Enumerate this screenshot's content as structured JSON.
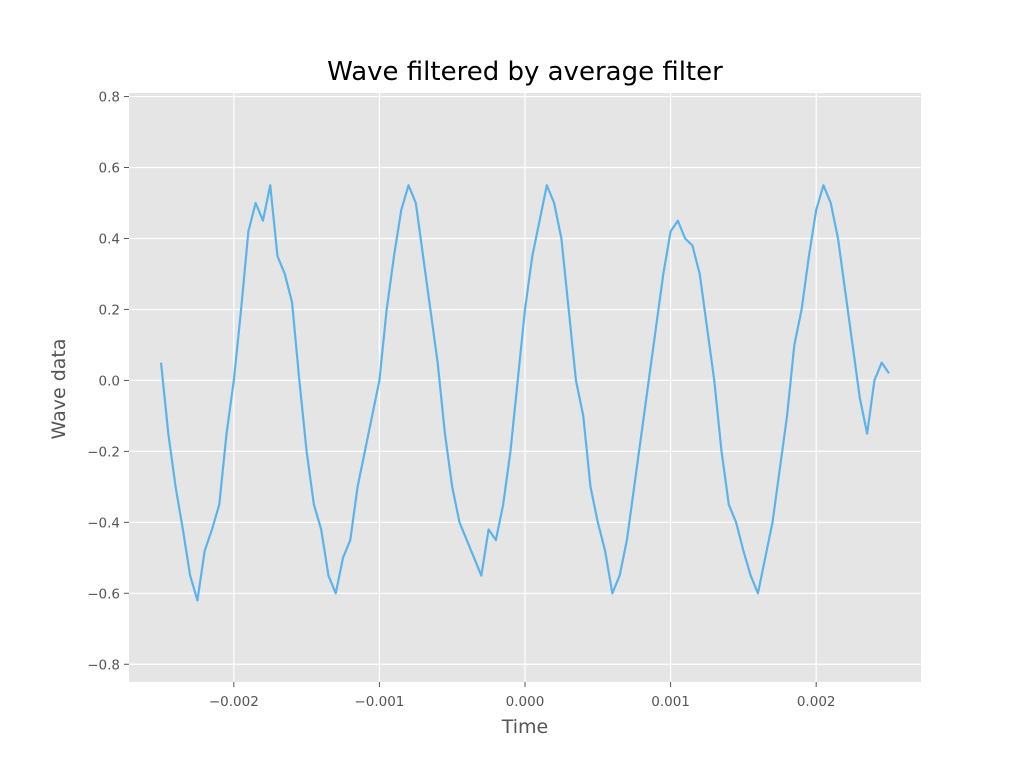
{
  "chart_data": {
    "type": "line",
    "title": "Wave filtered by average filter",
    "xlabel": "Time",
    "ylabel": "Wave data",
    "xlim": [
      -0.00272,
      0.00272
    ],
    "ylim": [
      -0.85,
      0.81
    ],
    "grid": true,
    "legend": false,
    "background_color": "#e5e5e5",
    "line_color": "#5ab4ec",
    "xticks": [
      {
        "value": -0.002,
        "label": "−0.002"
      },
      {
        "value": -0.001,
        "label": "−0.001"
      },
      {
        "value": 0.0,
        "label": "0.000"
      },
      {
        "value": 0.001,
        "label": "0.001"
      },
      {
        "value": 0.002,
        "label": "0.002"
      }
    ],
    "yticks": [
      {
        "value": -0.8,
        "label": "−0.8"
      },
      {
        "value": -0.6,
        "label": "−0.6"
      },
      {
        "value": -0.4,
        "label": "−0.4"
      },
      {
        "value": -0.2,
        "label": "−0.2"
      },
      {
        "value": 0.0,
        "label": "0.0"
      },
      {
        "value": 0.2,
        "label": "0.2"
      },
      {
        "value": 0.4,
        "label": "0.4"
      },
      {
        "value": 0.6,
        "label": "0.6"
      },
      {
        "value": 0.8,
        "label": "0.8"
      }
    ],
    "series": [
      {
        "x": [
          -0.0025,
          -0.00245,
          -0.0024,
          -0.00235,
          -0.0023,
          -0.00225,
          -0.0022,
          -0.00215,
          -0.0021,
          -0.00205,
          -0.002,
          -0.00195,
          -0.0019,
          -0.00185,
          -0.0018,
          -0.00175,
          -0.0017,
          -0.00165,
          -0.0016,
          -0.00155,
          -0.0015,
          -0.00145,
          -0.0014,
          -0.00135,
          -0.0013,
          -0.00125,
          -0.0012,
          -0.00115,
          -0.0011,
          -0.00105,
          -0.001,
          -0.00095,
          -0.0009,
          -0.00085,
          -0.0008,
          -0.00075,
          -0.0007,
          -0.00065,
          -0.0006,
          -0.00055,
          -0.0005,
          -0.00045,
          -0.0004,
          -0.00035,
          -0.0003,
          -0.00025,
          -0.0002,
          -0.00015,
          -0.0001,
          -5e-05,
          0.0,
          5e-05,
          0.0001,
          0.00015,
          0.0002,
          0.00025,
          0.0003,
          0.00035,
          0.0004,
          0.00045,
          0.0005,
          0.00055,
          0.0006,
          0.00065,
          0.0007,
          0.00075,
          0.0008,
          0.00085,
          0.0009,
          0.00095,
          0.001,
          0.00105,
          0.0011,
          0.00115,
          0.0012,
          0.00125,
          0.0013,
          0.00135,
          0.0014,
          0.00145,
          0.0015,
          0.00155,
          0.0016,
          0.00165,
          0.0017,
          0.00175,
          0.0018,
          0.00185,
          0.0019,
          0.00195,
          0.002,
          0.00205,
          0.0021,
          0.00215,
          0.0022,
          0.00225,
          0.0023,
          0.00235,
          0.0024,
          0.00245,
          0.0025
        ],
        "y": [
          0.05,
          -0.15,
          -0.3,
          -0.42,
          -0.55,
          -0.62,
          -0.48,
          -0.42,
          -0.35,
          -0.15,
          0.0,
          0.2,
          0.42,
          0.5,
          0.45,
          0.55,
          0.35,
          0.3,
          0.22,
          0.0,
          -0.2,
          -0.35,
          -0.42,
          -0.55,
          -0.6,
          -0.5,
          -0.45,
          -0.3,
          -0.2,
          -0.1,
          0.0,
          0.2,
          0.35,
          0.48,
          0.55,
          0.5,
          0.35,
          0.2,
          0.05,
          -0.15,
          -0.3,
          -0.4,
          -0.45,
          -0.5,
          -0.55,
          -0.42,
          -0.45,
          -0.35,
          -0.2,
          0.0,
          0.2,
          0.35,
          0.45,
          0.55,
          0.5,
          0.4,
          0.2,
          0.0,
          -0.1,
          -0.3,
          -0.4,
          -0.48,
          -0.6,
          -0.55,
          -0.45,
          -0.3,
          -0.15,
          0.0,
          0.15,
          0.3,
          0.42,
          0.45,
          0.4,
          0.38,
          0.3,
          0.15,
          0.0,
          -0.2,
          -0.35,
          -0.4,
          -0.48,
          -0.55,
          -0.6,
          -0.5,
          -0.4,
          -0.25,
          -0.1,
          0.1,
          0.2,
          0.35,
          0.48,
          0.55,
          0.5,
          0.4,
          0.25,
          0.1,
          -0.05,
          -0.15,
          0.0,
          0.05,
          0.02
        ]
      }
    ]
  }
}
